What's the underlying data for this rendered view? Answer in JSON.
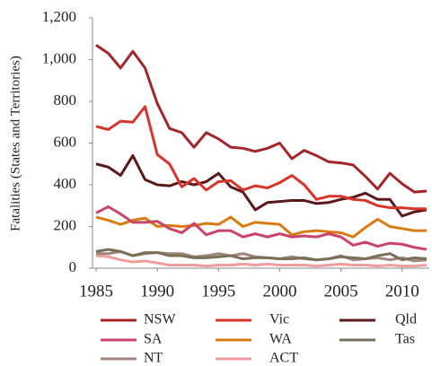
{
  "chart_data": {
    "type": "line",
    "y_label": "Fatalities (States and Territories)",
    "x": [
      1985,
      1986,
      1987,
      1988,
      1989,
      1990,
      1991,
      1992,
      1993,
      1994,
      1995,
      1996,
      1997,
      1998,
      1999,
      2000,
      2001,
      2002,
      2003,
      2004,
      2005,
      2006,
      2007,
      2008,
      2009,
      2010,
      2011,
      2012
    ],
    "xlim": [
      1985,
      2012
    ],
    "xticks": [
      1985,
      1990,
      1995,
      2000,
      2005,
      2010
    ],
    "ylim": [
      0,
      1200
    ],
    "yticks": [
      0,
      200,
      400,
      600,
      800,
      {
        "value": 1000,
        "label": "1,000"
      },
      {
        "value": 1200,
        "label": "1,200"
      }
    ],
    "grid": false,
    "legend": "bottom",
    "series": [
      {
        "name": "NSW",
        "color": "#a3262a",
        "values": [
          1070,
          1030,
          960,
          1040,
          960,
          790,
          670,
          650,
          580,
          650,
          620,
          580,
          575,
          560,
          575,
          600,
          525,
          565,
          540,
          510,
          505,
          495,
          440,
          380,
          455,
          405,
          365,
          370
        ]
      },
      {
        "name": "Vic",
        "color": "#d8352a",
        "values": [
          680,
          665,
          705,
          700,
          775,
          545,
          500,
          390,
          430,
          375,
          415,
          420,
          375,
          395,
          385,
          410,
          445,
          400,
          330,
          345,
          345,
          330,
          325,
          300,
          290,
          290,
          285,
          285
        ]
      },
      {
        "name": "Qld",
        "color": "#5a1a1a",
        "values": [
          500,
          485,
          445,
          540,
          425,
          400,
          395,
          415,
          400,
          415,
          455,
          390,
          365,
          280,
          315,
          320,
          325,
          325,
          310,
          315,
          330,
          340,
          360,
          330,
          330,
          250,
          270,
          280
        ]
      },
      {
        "name": "SA",
        "color": "#c9436b",
        "values": [
          265,
          295,
          260,
          220,
          220,
          225,
          190,
          170,
          215,
          160,
          180,
          180,
          150,
          165,
          150,
          165,
          150,
          155,
          150,
          165,
          150,
          110,
          125,
          105,
          120,
          115,
          100,
          90
        ]
      },
      {
        "name": "WA",
        "color": "#d97b10",
        "values": [
          245,
          230,
          210,
          230,
          240,
          200,
          205,
          200,
          205,
          215,
          210,
          245,
          200,
          220,
          215,
          210,
          160,
          175,
          180,
          175,
          170,
          150,
          195,
          235,
          200,
          190,
          180,
          180
        ]
      },
      {
        "name": "Tas",
        "color": "#7a7058",
        "values": [
          80,
          90,
          80,
          60,
          75,
          75,
          60,
          60,
          50,
          50,
          55,
          60,
          45,
          50,
          50,
          45,
          45,
          50,
          40,
          45,
          55,
          50,
          45,
          60,
          70,
          40,
          50,
          45
        ]
      },
      {
        "name": "NT",
        "color": "#a2847c",
        "values": [
          70,
          70,
          80,
          60,
          70,
          75,
          70,
          70,
          55,
          60,
          70,
          60,
          70,
          55,
          50,
          45,
          55,
          45,
          40,
          45,
          60,
          40,
          45,
          50,
          40,
          50,
          35,
          40
        ]
      },
      {
        "name": "ACT",
        "color": "#f09c9c",
        "values": [
          60,
          55,
          40,
          30,
          35,
          25,
          15,
          15,
          15,
          10,
          15,
          15,
          20,
          15,
          20,
          15,
          15,
          15,
          10,
          15,
          20,
          15,
          15,
          10,
          15,
          10,
          10,
          15
        ]
      }
    ]
  }
}
